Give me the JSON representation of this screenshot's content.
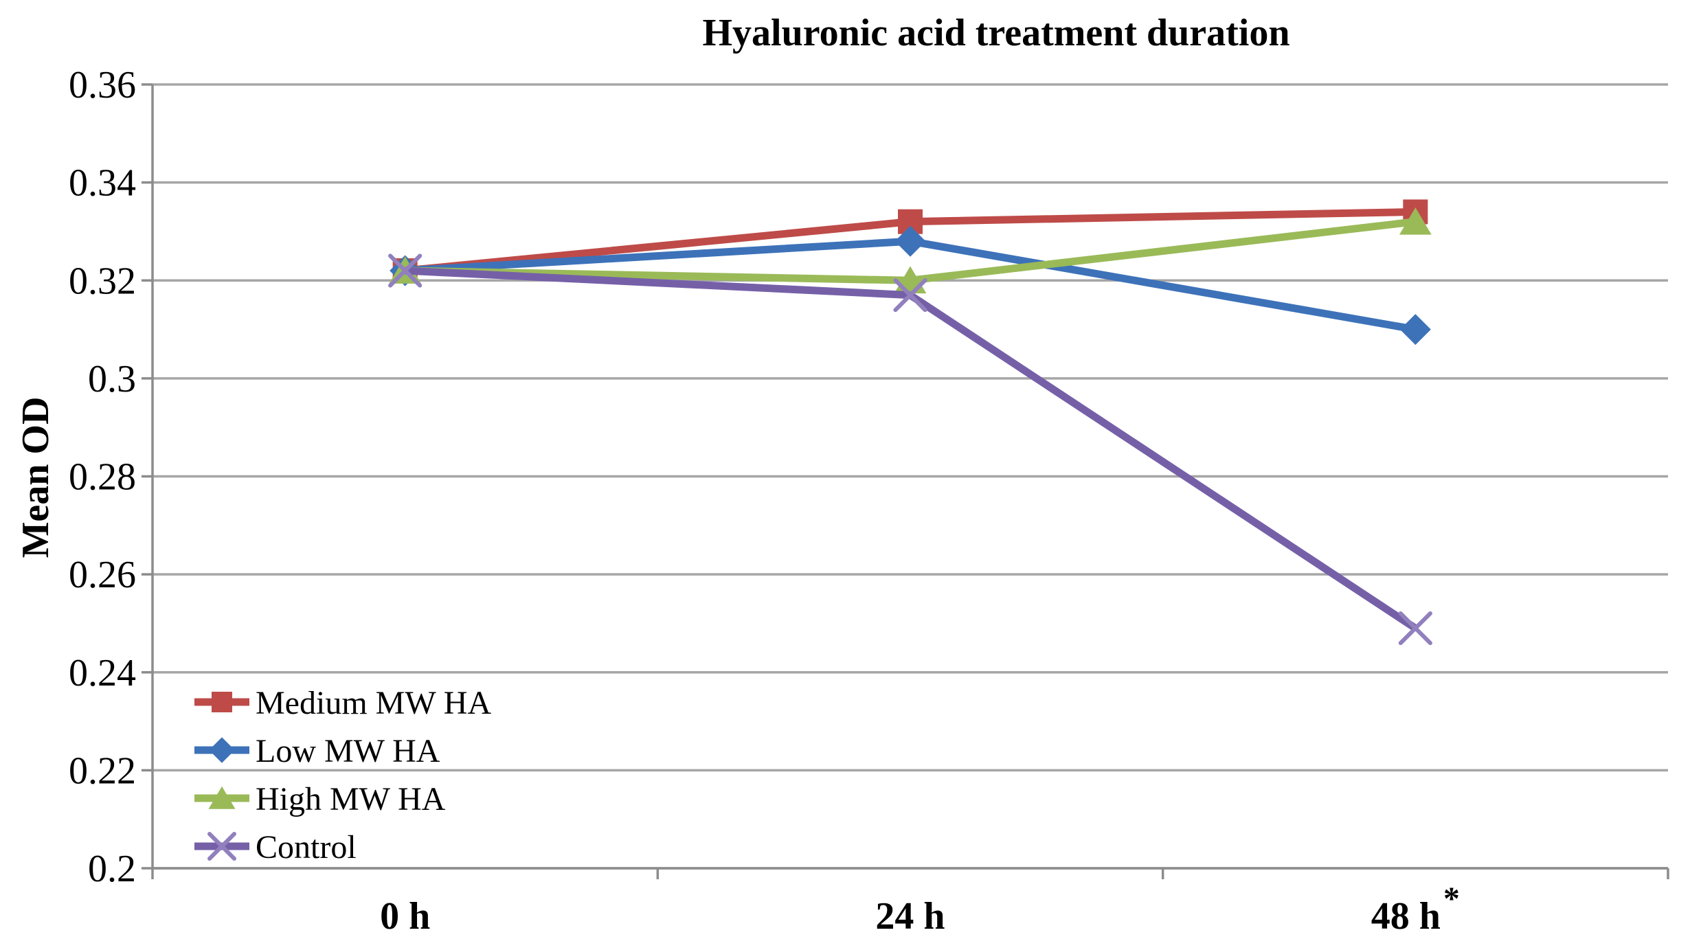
{
  "chart_data": {
    "type": "line",
    "title": "Hyaluronic acid treatment duration",
    "xlabel": "",
    "ylabel": "Mean OD",
    "categories": [
      {
        "label": "0 h",
        "superscript": ""
      },
      {
        "label": "24 h",
        "superscript": ""
      },
      {
        "label": "48 h",
        "superscript": "*"
      }
    ],
    "ylim": [
      0.2,
      0.36
    ],
    "ytick_step": 0.02,
    "ytick_labels": [
      "0.36",
      "0.34",
      "0.32",
      "0.3",
      "0.28",
      "0.26",
      "0.24",
      "0.22",
      "0.2"
    ],
    "grid": true,
    "legend_position": "inside-bottom-left",
    "series": [
      {
        "name": "Medium MW HA",
        "marker": "square",
        "color": "#be4b48",
        "marker_color": "#be4b48",
        "values": [
          0.322,
          0.332,
          0.334
        ]
      },
      {
        "name": "Low MW HA",
        "marker": "diamond",
        "color": "#3d72b9",
        "marker_color": "#3d72b9",
        "values": [
          0.322,
          0.328,
          0.31
        ]
      },
      {
        "name": "High MW HA",
        "marker": "triangle",
        "color": "#9aba58",
        "marker_color": "#9aba58",
        "values": [
          0.322,
          0.32,
          0.332
        ]
      },
      {
        "name": "Control",
        "marker": "x",
        "color": "#7560a8",
        "marker_color": "#9180bd",
        "values": [
          0.322,
          0.317,
          0.249
        ]
      }
    ],
    "colors": {
      "gridline": "#a6a6a6",
      "axis": "#8c8c8c",
      "text": "#000000",
      "background": "#ffffff"
    }
  }
}
